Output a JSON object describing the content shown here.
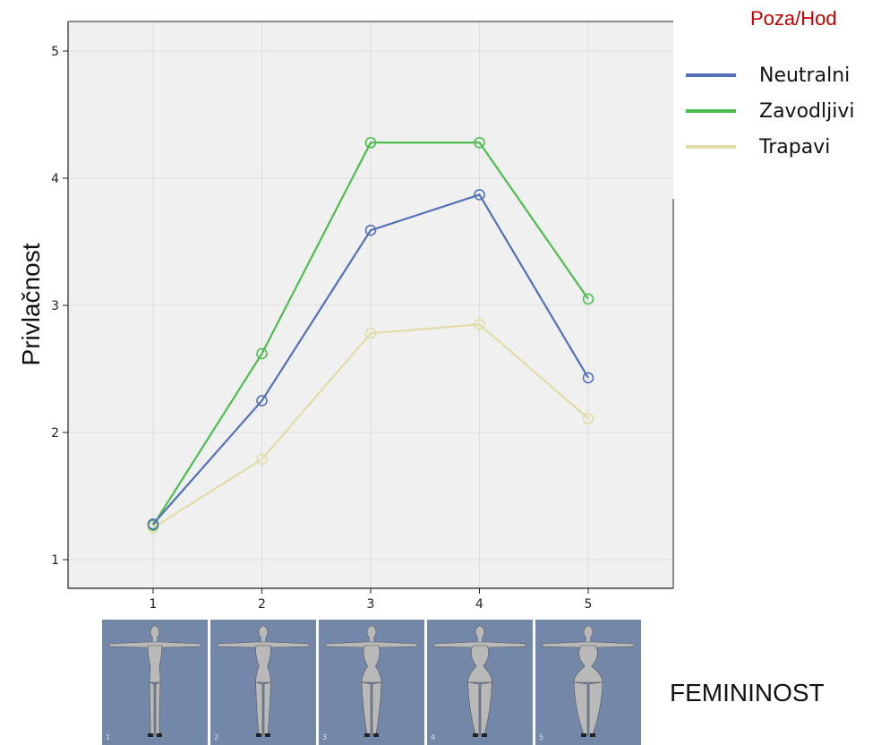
{
  "chart_data": {
    "type": "line",
    "x": [
      1,
      2,
      3,
      4,
      5
    ],
    "x_tick_labels": [
      "1",
      "2",
      "3",
      "4",
      "5"
    ],
    "ylabel": "Privlačnost",
    "xlabel": "FEMININOST",
    "ylim": [
      0.8,
      5.2
    ],
    "yticks": [
      1,
      2,
      3,
      4,
      5
    ],
    "grid": true,
    "legend_title": "Poza/Hod",
    "legend_position": "top-right",
    "series": [
      {
        "name": "Neutralni",
        "color": "#5470b8",
        "values": [
          1.28,
          2.25,
          3.59,
          3.87,
          2.43
        ]
      },
      {
        "name": "Zavodljivi",
        "color": "#4dbd4e",
        "values": [
          1.27,
          2.62,
          4.28,
          4.28,
          3.05
        ]
      },
      {
        "name": "Trapavi",
        "color": "#e2dca8",
        "values": [
          1.25,
          1.79,
          2.78,
          2.85,
          2.11
        ]
      }
    ]
  },
  "thumbnails": [
    {
      "label": "1",
      "icon": "female-figure-icon"
    },
    {
      "label": "2",
      "icon": "female-figure-icon"
    },
    {
      "label": "3",
      "icon": "female-figure-icon"
    },
    {
      "label": "4",
      "icon": "female-figure-icon"
    },
    {
      "label": "5",
      "icon": "female-figure-icon"
    }
  ]
}
